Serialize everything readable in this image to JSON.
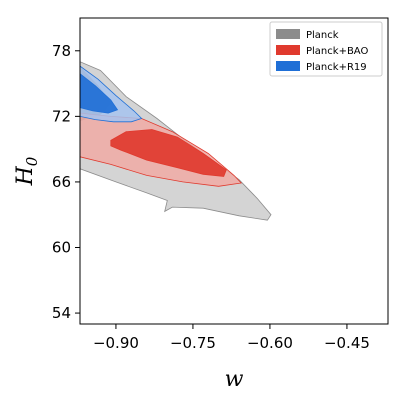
{
  "chart_data": {
    "type": "contour",
    "xlabel": "w",
    "ylabel": "H",
    "ylabel_subscript": "0",
    "xlim": [
      -0.97,
      -0.37
    ],
    "ylim": [
      53,
      81
    ],
    "xticks": [
      -0.9,
      -0.75,
      -0.6,
      -0.45
    ],
    "xtick_labels": [
      "−0.90",
      "−0.75",
      "−0.60",
      "−0.45"
    ],
    "yticks": [
      54,
      60,
      66,
      72,
      78
    ],
    "ytick_labels": [
      "54",
      "60",
      "66",
      "72",
      "78"
    ],
    "legend_position": "top-right",
    "series": [
      {
        "name": "Planck",
        "color": "#8c8c8c",
        "fill_2sigma": "#cccccc",
        "contour_2sigma": [
          [
            -0.97,
            77.0
          ],
          [
            -0.93,
            76.2
          ],
          [
            -0.88,
            73.8
          ],
          [
            -0.82,
            71.8
          ],
          [
            -0.76,
            69.6
          ],
          [
            -0.7,
            67.6
          ],
          [
            -0.66,
            66.2
          ],
          [
            -0.625,
            64.5
          ],
          [
            -0.598,
            63.0
          ],
          [
            -0.605,
            62.5
          ],
          [
            -0.66,
            62.9
          ],
          [
            -0.73,
            63.6
          ],
          [
            -0.79,
            63.7
          ],
          [
            -0.805,
            63.3
          ],
          [
            -0.8,
            64.3
          ],
          [
            -0.84,
            65.0
          ],
          [
            -0.9,
            66.0
          ],
          [
            -0.97,
            67.2
          ]
        ],
        "contour_1sigma": [
          [
            -0.97,
            76.5
          ],
          [
            -0.935,
            74.8
          ],
          [
            -0.91,
            73.2
          ],
          [
            -0.93,
            72.2
          ],
          [
            -0.97,
            71.6
          ]
        ]
      },
      {
        "name": "Planck+BAO",
        "color": "#e03a2e",
        "fill_2sigma": "#f0aaa5",
        "contour_2sigma": [
          [
            -0.97,
            72.3
          ],
          [
            -0.91,
            72.0
          ],
          [
            -0.85,
            71.8
          ],
          [
            -0.79,
            70.6
          ],
          [
            -0.72,
            68.6
          ],
          [
            -0.67,
            66.6
          ],
          [
            -0.656,
            65.9
          ],
          [
            -0.7,
            65.6
          ],
          [
            -0.77,
            66.0
          ],
          [
            -0.84,
            66.6
          ],
          [
            -0.91,
            67.6
          ],
          [
            -0.97,
            68.3
          ]
        ],
        "contour_1sigma": [
          [
            -0.91,
            69.8
          ],
          [
            -0.88,
            70.6
          ],
          [
            -0.83,
            70.8
          ],
          [
            -0.78,
            70.1
          ],
          [
            -0.73,
            68.6
          ],
          [
            -0.685,
            67.1
          ],
          [
            -0.69,
            66.5
          ],
          [
            -0.73,
            66.7
          ],
          [
            -0.78,
            67.3
          ],
          [
            -0.84,
            68.0
          ],
          [
            -0.89,
            68.9
          ],
          [
            -0.91,
            69.3
          ]
        ]
      },
      {
        "name": "Planck+R19",
        "color": "#1f6fd6",
        "fill_2sigma": "#a6c3ee",
        "contour_2sigma": [
          [
            -0.97,
            76.6
          ],
          [
            -0.935,
            75.4
          ],
          [
            -0.9,
            73.9
          ],
          [
            -0.865,
            72.5
          ],
          [
            -0.85,
            71.8
          ],
          [
            -0.87,
            71.5
          ],
          [
            -0.905,
            71.5
          ],
          [
            -0.94,
            71.7
          ],
          [
            -0.97,
            72.0
          ]
        ],
        "contour_1sigma": [
          [
            -0.97,
            75.9
          ],
          [
            -0.94,
            74.8
          ],
          [
            -0.91,
            73.5
          ],
          [
            -0.897,
            72.6
          ],
          [
            -0.915,
            72.3
          ],
          [
            -0.945,
            72.5
          ],
          [
            -0.97,
            72.8
          ]
        ]
      }
    ]
  }
}
